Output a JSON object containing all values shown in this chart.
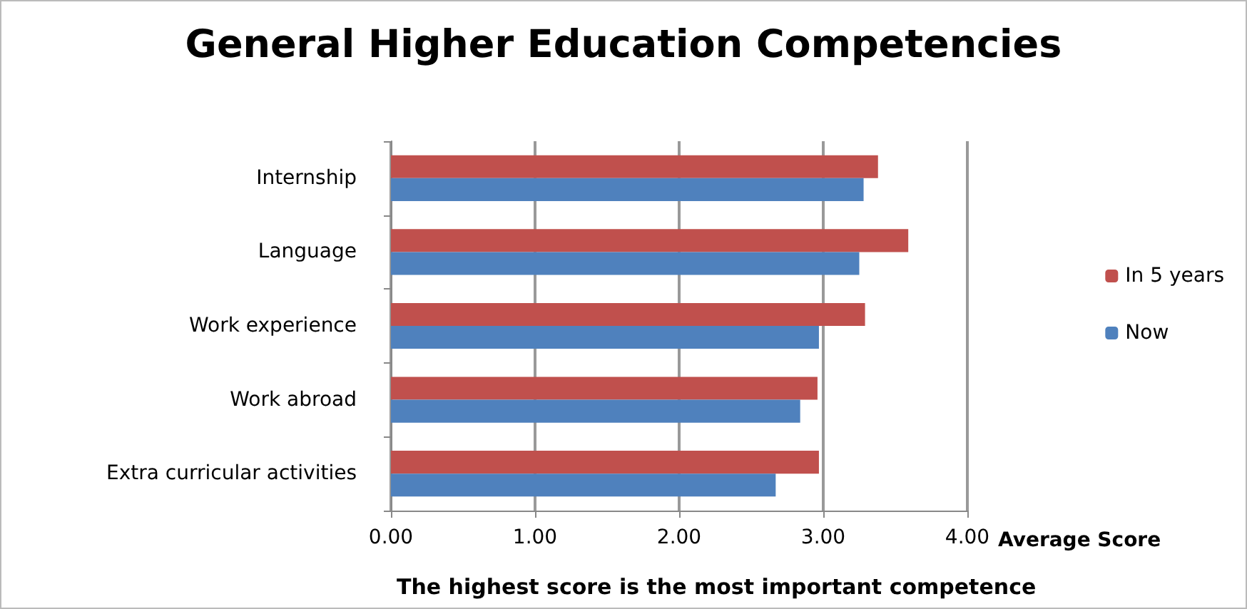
{
  "chart_data": {
    "type": "bar",
    "orientation": "horizontal",
    "title": "General Higher Education Competencies",
    "xlabel": "Average Score",
    "annotations": [
      "The highest score is the most important competence"
    ],
    "categories": [
      "Internship",
      "Language",
      "Work experience",
      "Work abroad",
      "Extra curricular activities"
    ],
    "series": [
      {
        "name": "In 5 years",
        "color": "#c0504d",
        "values": [
          3.38,
          3.59,
          3.29,
          2.96,
          2.97
        ]
      },
      {
        "name": "Now",
        "color": "#4f81bd",
        "values": [
          3.28,
          3.25,
          2.97,
          2.84,
          2.67
        ]
      }
    ],
    "xlim": [
      0,
      4
    ],
    "xticks": [
      {
        "value": 0,
        "label": "0.00"
      },
      {
        "value": 1,
        "label": "1.00"
      },
      {
        "value": 2,
        "label": "2.00"
      },
      {
        "value": 3,
        "label": "3.00"
      },
      {
        "value": 4,
        "label": "4.00"
      }
    ],
    "grid": "x",
    "legend": "right"
  }
}
